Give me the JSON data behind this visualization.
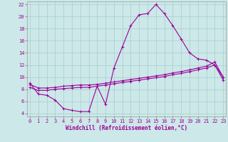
{
  "background_color": "#cce8e8",
  "grid_color": "#aacccc",
  "line_color": "#990099",
  "spine_color": "#999999",
  "xlabel": "Windchill (Refroidissement éolien,°C)",
  "x_data": [
    0,
    1,
    2,
    3,
    4,
    5,
    6,
    7,
    8,
    9,
    10,
    11,
    12,
    13,
    14,
    15,
    16,
    17,
    18,
    19,
    20,
    21,
    22,
    23
  ],
  "line1_y": [
    9.0,
    7.2,
    7.0,
    6.2,
    4.8,
    4.5,
    4.3,
    4.3,
    8.5,
    5.5,
    11.5,
    15.0,
    18.5,
    20.3,
    20.5,
    22.0,
    20.5,
    18.5,
    16.3,
    14.0,
    13.0,
    12.8,
    12.0,
    10.0
  ],
  "line2_y": [
    8.8,
    8.2,
    8.2,
    8.3,
    8.5,
    8.6,
    8.7,
    8.7,
    8.8,
    9.0,
    9.2,
    9.4,
    9.6,
    9.8,
    10.0,
    10.2,
    10.4,
    10.7,
    10.9,
    11.2,
    11.5,
    11.8,
    12.5,
    10.0
  ],
  "line3_y": [
    8.3,
    7.8,
    7.8,
    8.0,
    8.1,
    8.2,
    8.3,
    8.3,
    8.5,
    8.7,
    8.9,
    9.1,
    9.3,
    9.5,
    9.7,
    9.9,
    10.1,
    10.4,
    10.6,
    10.9,
    11.2,
    11.5,
    12.0,
    9.5
  ],
  "ylim": [
    3.5,
    22.5
  ],
  "xlim": [
    -0.3,
    23.3
  ],
  "yticks": [
    4,
    6,
    8,
    10,
    12,
    14,
    16,
    18,
    20,
    22
  ],
  "xticks": [
    0,
    1,
    2,
    3,
    4,
    5,
    6,
    7,
    8,
    9,
    10,
    11,
    12,
    13,
    14,
    15,
    16,
    17,
    18,
    19,
    20,
    21,
    22,
    23
  ],
  "tick_fontsize": 5,
  "xlabel_fontsize": 5.5
}
